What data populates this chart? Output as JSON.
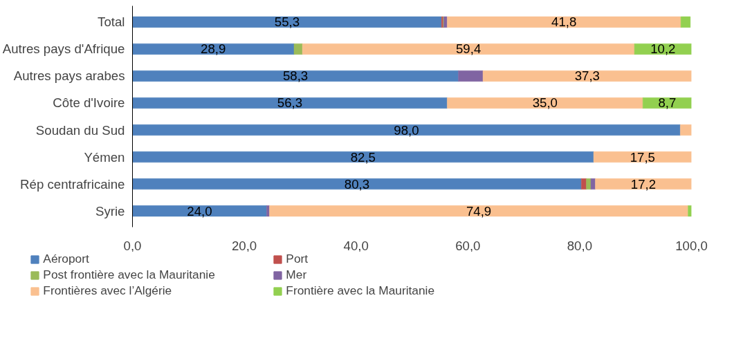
{
  "chart_data": {
    "type": "bar",
    "orientation": "horizontal",
    "stacked": true,
    "categories": [
      "Total",
      "Autres pays d'Afrique",
      "Autres pays arabes",
      "Côte d'Ivoire",
      "Soudan du Sud",
      "Yémen",
      "Rép centrafricaine",
      "Syrie"
    ],
    "series": [
      {
        "name": "Aéroport",
        "color": "#4f81bd",
        "values": [
          55.3,
          28.9,
          58.3,
          56.3,
          98.0,
          82.5,
          80.3,
          24.0
        ],
        "value_labels": [
          "55,3",
          "28,9",
          "58,3",
          "56,3",
          "98,0",
          "82,5",
          "80,3",
          "24,0"
        ]
      },
      {
        "name": "Port",
        "color": "#c0504d",
        "values": [
          0.3,
          null,
          null,
          null,
          null,
          null,
          0.9,
          null
        ]
      },
      {
        "name": "Post frontière avec la Mauritanie",
        "color": "#9bbb59",
        "values": [
          0.1,
          1.5,
          null,
          null,
          null,
          null,
          0.8,
          null
        ]
      },
      {
        "name": "Mer",
        "color": "#8064a2",
        "values": [
          0.6,
          null,
          4.4,
          null,
          null,
          null,
          0.8,
          0.5
        ]
      },
      {
        "name": "Frontières avec l’Algérie",
        "color": "#fac090",
        "values": [
          41.8,
          59.4,
          37.3,
          35.0,
          2.0,
          17.5,
          17.2,
          74.9
        ],
        "value_labels": [
          "41,8",
          "59,4",
          "37,3",
          "35,0",
          null,
          "17,5",
          "17,2",
          "74,9"
        ]
      },
      {
        "name": "Frontière avec la Mauritanie",
        "color": "#92d050",
        "values": [
          1.7,
          10.2,
          null,
          8.7,
          null,
          null,
          null,
          0.6
        ],
        "value_labels": [
          null,
          "10,2",
          null,
          "8,7",
          null,
          null,
          null,
          null
        ]
      }
    ],
    "xlim": [
      0,
      100
    ],
    "xticks": [
      {
        "value": 0,
        "label": "0,0"
      },
      {
        "value": 20,
        "label": "20,0"
      },
      {
        "value": 40,
        "label": "40,0"
      },
      {
        "value": 60,
        "label": "60,0"
      },
      {
        "value": 80,
        "label": "80,0"
      },
      {
        "value": 100,
        "label": "100,0"
      }
    ],
    "grid": false,
    "legend": "bottom"
  }
}
